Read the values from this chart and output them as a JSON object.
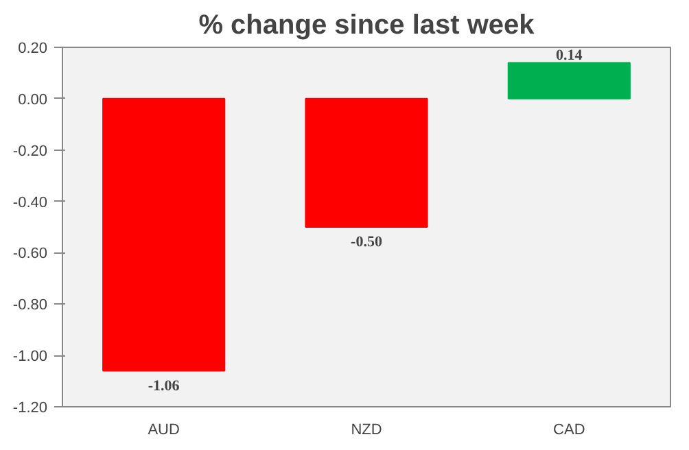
{
  "chart_data": {
    "type": "bar",
    "title": "% change since last week",
    "categories": [
      "AUD",
      "NZD",
      "CAD"
    ],
    "values": [
      -1.06,
      -0.5,
      0.14
    ],
    "colors": [
      "#ff0000",
      "#ff0000",
      "#00b050"
    ],
    "value_labels": [
      "-1.06",
      "-0.50",
      "0.14"
    ],
    "ylim": [
      -1.2,
      0.2
    ],
    "yticks": [
      {
        "value": -1.2,
        "label": "-1.20"
      },
      {
        "value": -1.0,
        "label": "-1.00"
      },
      {
        "value": -0.8,
        "label": "-0.80"
      },
      {
        "value": -0.6,
        "label": "-0.60"
      },
      {
        "value": -0.4,
        "label": "-0.40"
      },
      {
        "value": -0.2,
        "label": "-0.20"
      },
      {
        "value": 0.0,
        "label": "0.00"
      },
      {
        "value": 0.2,
        "label": "0.20"
      }
    ],
    "grid": false
  }
}
